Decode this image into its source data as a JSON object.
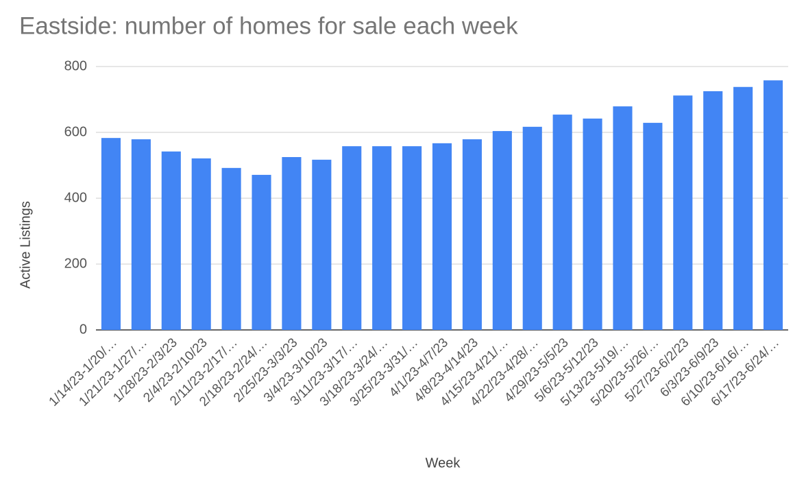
{
  "chart_data": {
    "type": "bar",
    "title": "Eastside: number of homes for sale each week",
    "x_label": "Week",
    "y_label": "Active Listings",
    "categories": [
      "1/14/23-1/20/…",
      "1/21/23-1/27/…",
      "1/28/23-2/3/23",
      "2/4/23-2/10/23",
      "2/11/23-2/17/…",
      "2/18/23-2/24/…",
      "2/25/23-3/3/23",
      "3/4/23-3/10/23",
      "3/11/23-3/17/…",
      "3/18/23-3/24/…",
      "3/25/23-3/31/…",
      "4/1/23-4/7/23",
      "4/8/23-4/14/23",
      "4/15/23-4/21/…",
      "4/22/23-4/28/…",
      "4/29/23-5/5/23",
      "5/6/23-5/12/23",
      "5/13/23-5/19/…",
      "5/20/23-5/26/…",
      "5/27/23-6/2/23",
      "6/3/23-6/9/23",
      "6/10/23-6/16/…",
      "6/17/23-6/24/…"
    ],
    "values": [
      583,
      579,
      542,
      521,
      492,
      471,
      525,
      517,
      558,
      558,
      558,
      567,
      579,
      604,
      617,
      654,
      642,
      679,
      629,
      712,
      725,
      738,
      758
    ],
    "color": "#4285f4",
    "ylim": [
      0,
      800
    ],
    "yticks": [
      0,
      200,
      400,
      600,
      800
    ],
    "grid": true
  }
}
